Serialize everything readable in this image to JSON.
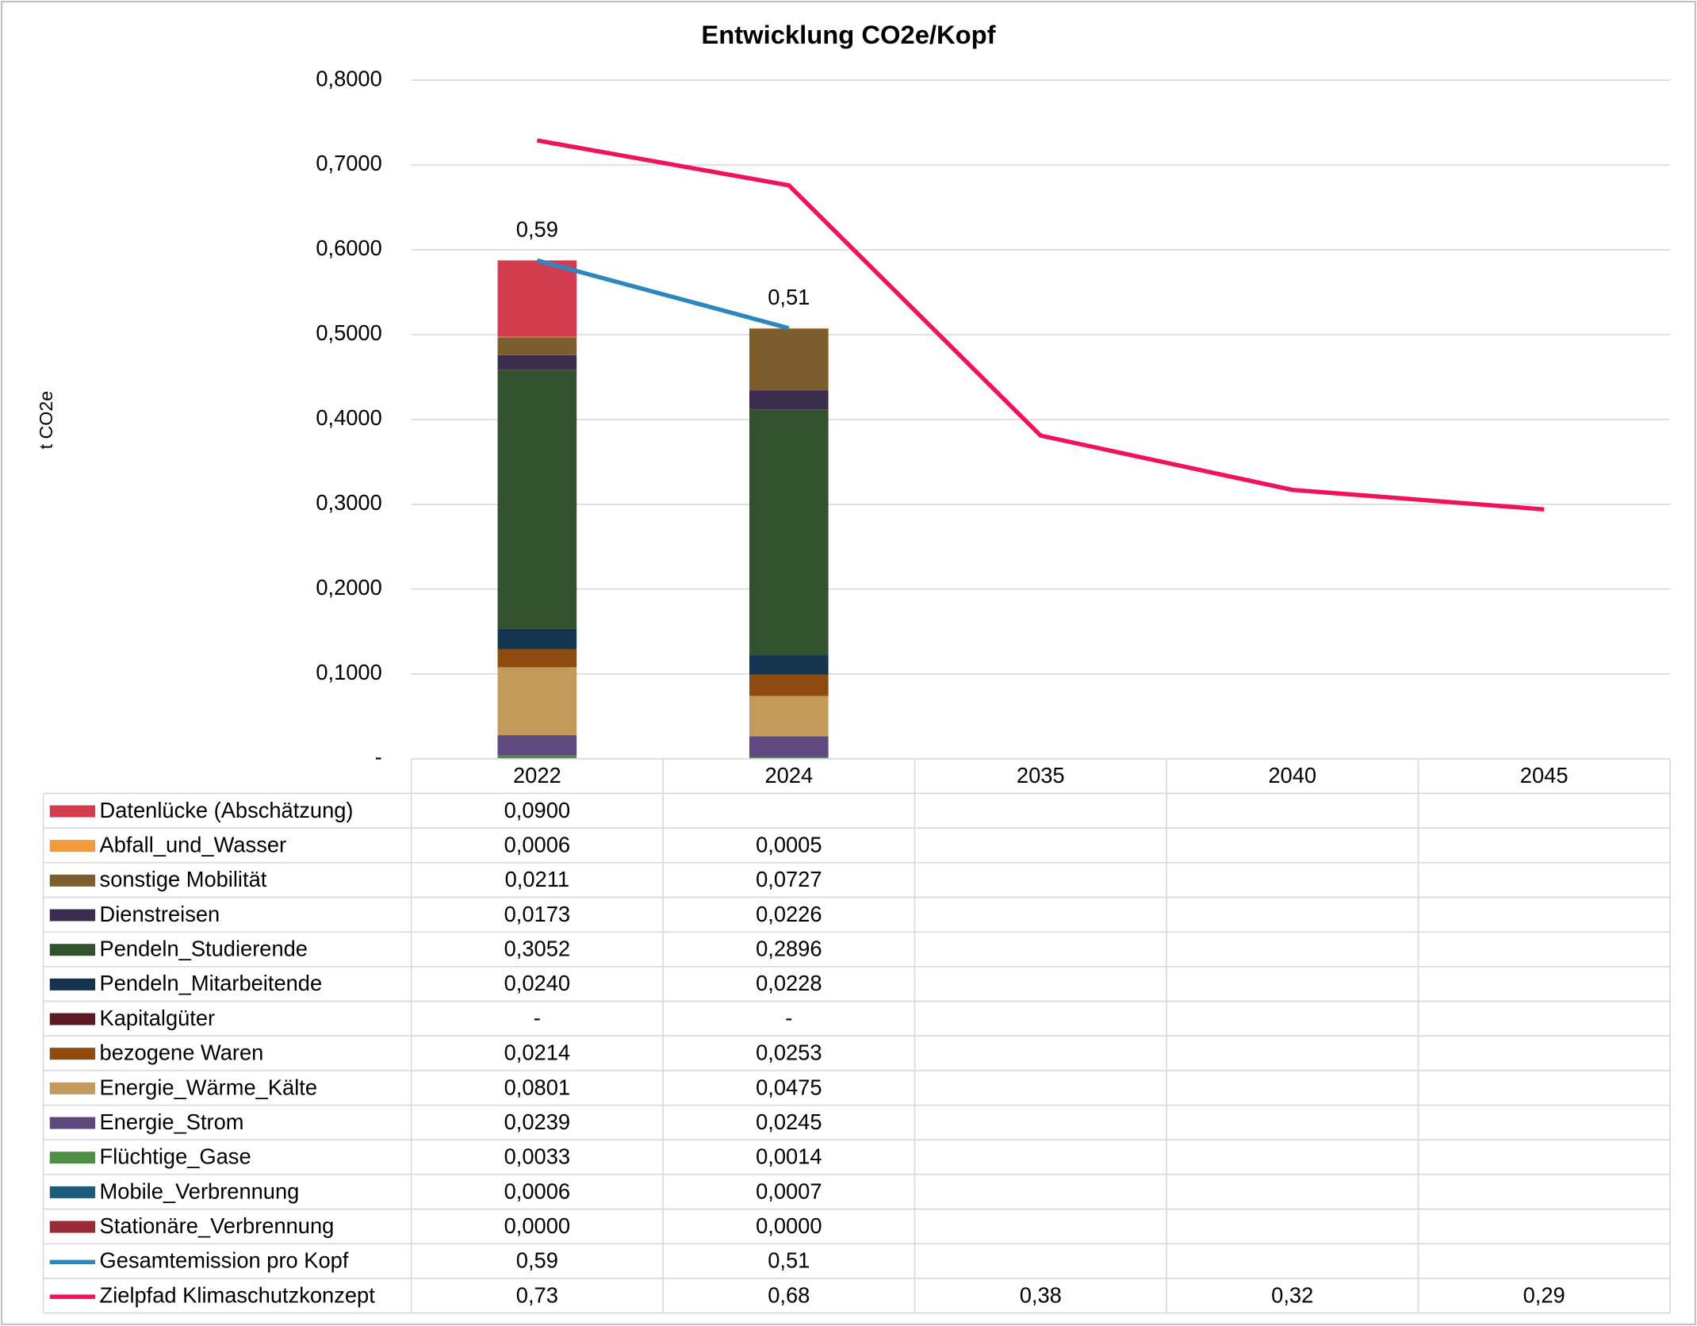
{
  "chart_data": {
    "type": "bar",
    "title": "Entwicklung CO2e/Kopf",
    "y_label": "t CO2e",
    "categories": [
      "2022",
      "2024",
      "2035",
      "2040",
      "2045"
    ],
    "ylim": [
      0,
      0.8
    ],
    "yticks": [
      {
        "value": 0,
        "label": "-"
      },
      {
        "value": 0.1,
        "label": "0,1000"
      },
      {
        "value": 0.2,
        "label": "0,2000"
      },
      {
        "value": 0.3,
        "label": "0,3000"
      },
      {
        "value": 0.4,
        "label": "0,4000"
      },
      {
        "value": 0.5,
        "label": "0,5000"
      },
      {
        "value": 0.6,
        "label": "0,6000"
      },
      {
        "value": 0.7,
        "label": "0,7000"
      },
      {
        "value": 0.8,
        "label": "0,8000"
      }
    ],
    "grid": true,
    "stacked": true,
    "data_table": true,
    "series": [
      {
        "name": "Datenlücke (Abschätzung)",
        "color": "#d13c4f",
        "values": [
          0.09,
          null,
          null,
          null,
          null
        ],
        "value_labels": [
          "0,0900",
          null,
          null,
          null,
          null
        ]
      },
      {
        "name": "Abfall_und_Wasser",
        "color": "#f39a3a",
        "values": [
          0.0006,
          0.0005,
          null,
          null,
          null
        ],
        "value_labels": [
          "0,0006",
          "0,0005",
          null,
          null,
          null
        ]
      },
      {
        "name": "sonstige Mobilität",
        "color": "#7b5d2e",
        "values": [
          0.0211,
          0.0727,
          null,
          null,
          null
        ],
        "value_labels": [
          "0,0211",
          "0,0727",
          null,
          null,
          null
        ]
      },
      {
        "name": "Dienstreisen",
        "color": "#3a2d4d",
        "values": [
          0.0173,
          0.0226,
          null,
          null,
          null
        ],
        "value_labels": [
          "0,0173",
          "0,0226",
          null,
          null,
          null
        ]
      },
      {
        "name": "Pendeln_Studierende",
        "color": "#31522c",
        "values": [
          0.3052,
          0.2896,
          null,
          null,
          null
        ],
        "value_labels": [
          "0,3052",
          "0,2896",
          null,
          null,
          null
        ]
      },
      {
        "name": "Pendeln_Mitarbeitende",
        "color": "#14344f",
        "values": [
          0.024,
          0.0228,
          null,
          null,
          null
        ],
        "value_labels": [
          "0,0240",
          "0,0228",
          null,
          null,
          null
        ]
      },
      {
        "name": "Kapitalgüter",
        "color": "#5c1a22",
        "values": [
          0,
          0,
          null,
          null,
          null
        ],
        "value_labels": [
          "-",
          "-",
          null,
          null,
          null
        ]
      },
      {
        "name": "bezogene Waren",
        "color": "#8f4a0e",
        "values": [
          0.0214,
          0.0253,
          null,
          null,
          null
        ],
        "value_labels": [
          "0,0214",
          "0,0253",
          null,
          null,
          null
        ]
      },
      {
        "name": "Energie_Wärme_Kälte",
        "color": "#c49a5a",
        "values": [
          0.0801,
          0.0475,
          null,
          null,
          null
        ],
        "value_labels": [
          "0,0801",
          "0,0475",
          null,
          null,
          null
        ]
      },
      {
        "name": "Energie_Strom",
        "color": "#5e4a7e",
        "values": [
          0.0239,
          0.0245,
          null,
          null,
          null
        ],
        "value_labels": [
          "0,0239",
          "0,0245",
          null,
          null,
          null
        ]
      },
      {
        "name": "Flüchtige_Gase",
        "color": "#4f8f45",
        "values": [
          0.0033,
          0.0014,
          null,
          null,
          null
        ],
        "value_labels": [
          "0,0033",
          "0,0014",
          null,
          null,
          null
        ]
      },
      {
        "name": "Mobile_Verbrennung",
        "color": "#1c5a7e",
        "values": [
          0.0006,
          0.0007,
          null,
          null,
          null
        ],
        "value_labels": [
          "0,0006",
          "0,0007",
          null,
          null,
          null
        ]
      },
      {
        "name": "Stationäre_Verbrennung",
        "color": "#9b2a36",
        "values": [
          0,
          0,
          null,
          null,
          null
        ],
        "value_labels": [
          "0,0000",
          "0,0000",
          null,
          null,
          null
        ]
      },
      {
        "name": "Gesamtemission pro Kopf",
        "type": "line",
        "color": "#2e86c1",
        "data_labels": true,
        "values": [
          0.5875,
          0.5076,
          null,
          null,
          null
        ],
        "value_labels": [
          "0,59",
          "0,51",
          null,
          null,
          null
        ]
      },
      {
        "name": "Zielpfad Klimaschutzkonzept",
        "type": "line",
        "color": "#f0125c",
        "values": [
          0.729,
          0.676,
          0.381,
          0.317,
          0.294
        ],
        "value_labels": [
          "0,73",
          "0,68",
          "0,38",
          "0,32",
          "0,29"
        ]
      }
    ]
  }
}
